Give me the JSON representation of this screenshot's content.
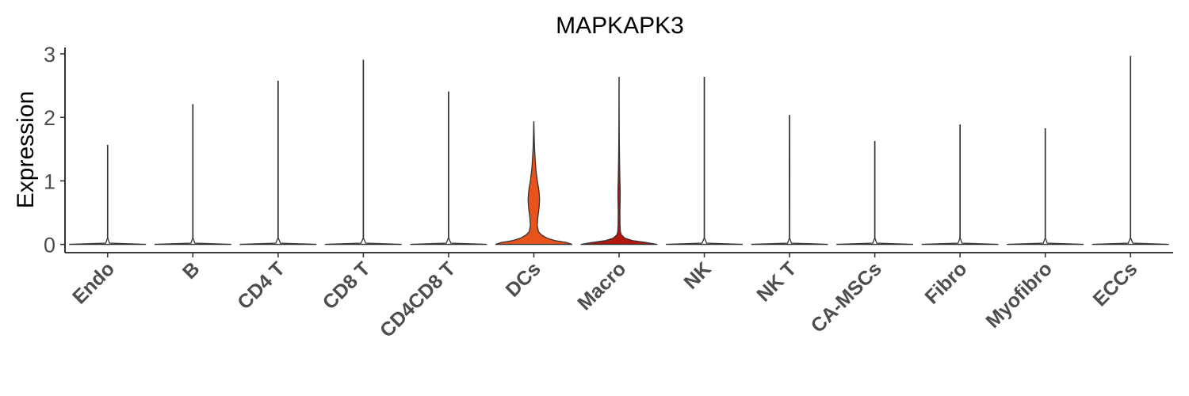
{
  "chart_data": {
    "type": "violin",
    "title": "MAPKAPK3",
    "xlabel": "",
    "ylabel": "Expression",
    "ylim": [
      -0.13,
      3.1
    ],
    "yticks": [
      "0",
      "1",
      "2",
      "3"
    ],
    "grid": false,
    "legend": "none",
    "categories": [
      "Endo",
      "B",
      "CD4 T",
      "CD8 T",
      "CD4CD8 T",
      "DCs",
      "Macro",
      "NK",
      "NK T",
      "CA-MSCs",
      "Fibro",
      "Myofibro",
      "ECCs"
    ],
    "series": [
      {
        "category": "Endo",
        "max": 1.56,
        "fill": "#ffffff",
        "density": [
          [
            0,
            1
          ],
          [
            0.02,
            0.05
          ],
          [
            0.1,
            0.004
          ],
          [
            1.56,
            0.004
          ]
        ]
      },
      {
        "category": "B",
        "max": 2.2,
        "fill": "#ffffff",
        "density": [
          [
            0,
            1
          ],
          [
            0.02,
            0.05
          ],
          [
            0.1,
            0.004
          ],
          [
            2.2,
            0.004
          ]
        ]
      },
      {
        "category": "CD4 T",
        "max": 2.57,
        "fill": "#ffffff",
        "density": [
          [
            0,
            1
          ],
          [
            0.02,
            0.06
          ],
          [
            0.1,
            0.004
          ],
          [
            2.57,
            0.004
          ]
        ]
      },
      {
        "category": "CD8 T",
        "max": 2.9,
        "fill": "#ffffff",
        "density": [
          [
            0,
            1
          ],
          [
            0.02,
            0.06
          ],
          [
            0.1,
            0.004
          ],
          [
            2.9,
            0.004
          ]
        ]
      },
      {
        "category": "CD4CD8 T",
        "max": 2.4,
        "fill": "#ffffff",
        "density": [
          [
            0,
            1
          ],
          [
            0.02,
            0.06
          ],
          [
            0.1,
            0.004
          ],
          [
            2.4,
            0.004
          ]
        ]
      },
      {
        "category": "DCs",
        "max": 1.93,
        "fill": "#e8531b",
        "density": [
          [
            0,
            1
          ],
          [
            0.03,
            0.85
          ],
          [
            0.06,
            0.55
          ],
          [
            0.1,
            0.34
          ],
          [
            0.15,
            0.2
          ],
          [
            0.2,
            0.12
          ],
          [
            0.3,
            0.09
          ],
          [
            0.4,
            0.1
          ],
          [
            0.5,
            0.12
          ],
          [
            0.6,
            0.14
          ],
          [
            0.7,
            0.15
          ],
          [
            0.8,
            0.14
          ],
          [
            0.9,
            0.12
          ],
          [
            1.0,
            0.09
          ],
          [
            1.1,
            0.07
          ],
          [
            1.2,
            0.05
          ],
          [
            1.35,
            0.035
          ],
          [
            1.5,
            0.02
          ],
          [
            1.65,
            0.012
          ],
          [
            1.8,
            0.006
          ],
          [
            1.93,
            0.002
          ]
        ]
      },
      {
        "category": "Macro",
        "max": 2.63,
        "fill": "#b3160e",
        "density": [
          [
            0,
            1
          ],
          [
            0.03,
            0.7
          ],
          [
            0.06,
            0.35
          ],
          [
            0.1,
            0.15
          ],
          [
            0.15,
            0.06
          ],
          [
            0.2,
            0.035
          ],
          [
            0.3,
            0.025
          ],
          [
            0.5,
            0.022
          ],
          [
            0.7,
            0.028
          ],
          [
            0.8,
            0.03
          ],
          [
            0.9,
            0.027
          ],
          [
            1.0,
            0.022
          ],
          [
            1.2,
            0.016
          ],
          [
            1.4,
            0.011
          ],
          [
            1.6,
            0.007
          ],
          [
            1.8,
            0.005
          ],
          [
            2.0,
            0.004
          ],
          [
            2.2,
            0.003
          ],
          [
            2.63,
            0.002
          ]
        ]
      },
      {
        "category": "NK",
        "max": 2.63,
        "fill": "#ffffff",
        "density": [
          [
            0,
            1
          ],
          [
            0.02,
            0.06
          ],
          [
            0.1,
            0.004
          ],
          [
            2.63,
            0.004
          ]
        ]
      },
      {
        "category": "NK T",
        "max": 2.03,
        "fill": "#ffffff",
        "density": [
          [
            0,
            1
          ],
          [
            0.02,
            0.05
          ],
          [
            0.1,
            0.004
          ],
          [
            1.2,
            0.006
          ],
          [
            2.03,
            0.004
          ]
        ]
      },
      {
        "category": "CA-MSCs",
        "max": 1.62,
        "fill": "#ffffff",
        "density": [
          [
            0,
            1
          ],
          [
            0.02,
            0.05
          ],
          [
            0.1,
            0.004
          ],
          [
            1.62,
            0.004
          ]
        ]
      },
      {
        "category": "Fibro",
        "max": 1.88,
        "fill": "#ffffff",
        "density": [
          [
            0,
            1
          ],
          [
            0.02,
            0.05
          ],
          [
            0.1,
            0.004
          ],
          [
            1.88,
            0.004
          ]
        ]
      },
      {
        "category": "Myofibro",
        "max": 1.82,
        "fill": "#ffffff",
        "density": [
          [
            0,
            1
          ],
          [
            0.02,
            0.05
          ],
          [
            0.1,
            0.004
          ],
          [
            1.82,
            0.004
          ]
        ]
      },
      {
        "category": "ECCs",
        "max": 2.96,
        "fill": "#ffffff",
        "density": [
          [
            0,
            1
          ],
          [
            0.02,
            0.06
          ],
          [
            0.1,
            0.004
          ],
          [
            2.96,
            0.004
          ]
        ]
      }
    ]
  }
}
